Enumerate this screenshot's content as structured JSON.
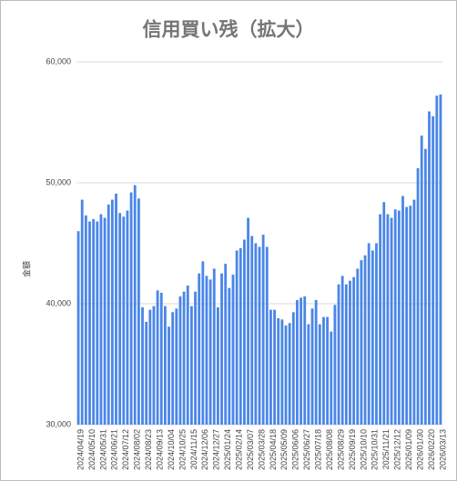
{
  "chart_data": {
    "type": "bar",
    "title": "信用買い残（拡大）",
    "y_label": "金額",
    "categories": [
      "2024/04/19",
      null,
      null,
      "2024/05/10",
      null,
      null,
      "2024/05/31",
      null,
      null,
      "2024/06/21",
      null,
      null,
      "2024/07/12",
      null,
      null,
      "2024/08/02",
      null,
      null,
      "2024/08/23",
      null,
      null,
      "2024/09/13",
      null,
      null,
      "2024/10/04",
      null,
      null,
      "2024/10/25",
      null,
      null,
      "2024/11/15",
      null,
      null,
      "2024/12/06",
      null,
      null,
      "2024/12/27",
      null,
      null,
      "2025/01/24",
      null,
      null,
      "2025/02/14",
      null,
      null,
      "2025/03/07",
      null,
      null,
      "2025/03/28",
      null,
      null,
      "2025/04/18",
      null,
      null,
      "2025/05/09",
      null,
      null,
      "2025/06/06",
      null,
      null,
      "2025/06/27",
      null,
      null,
      "2025/07/18",
      null,
      null,
      "2025/08/08",
      null,
      null,
      "2025/08/29",
      null,
      null,
      "2025/09/19",
      null,
      null,
      "2025/10/10",
      null,
      null,
      "2025/10/31",
      null,
      null,
      "2025/11/21",
      null,
      null,
      "2025/12/12",
      null,
      null,
      "2026/01/09",
      null,
      null,
      "2026/01/30",
      null,
      null,
      "2026/02/20",
      null,
      null,
      "2026/03/13"
    ],
    "values": [
      46000,
      48600,
      47300,
      46800,
      47000,
      46800,
      47400,
      47100,
      48200,
      48600,
      49100,
      47500,
      47200,
      47700,
      49200,
      49800,
      48700,
      39700,
      38500,
      39500,
      39800,
      41100,
      40900,
      39800,
      38100,
      39300,
      39600,
      40600,
      41000,
      41500,
      39800,
      41000,
      42500,
      43500,
      42300,
      42000,
      42900,
      39700,
      42500,
      43300,
      41300,
      42400,
      44400,
      44600,
      45300,
      47100,
      45600,
      45000,
      44700,
      45700,
      44700,
      39500,
      39500,
      38800,
      38700,
      38200,
      38400,
      39300,
      40300,
      40500,
      40600,
      38300,
      39600,
      40300,
      38300,
      38900,
      38900,
      37700,
      39900,
      41600,
      42300,
      41600,
      41900,
      42200,
      42900,
      43600,
      44000,
      45000,
      44400,
      45000,
      47400,
      48400,
      47400,
      47100,
      47800,
      47700,
      48900,
      48000,
      48100,
      48600,
      51200,
      53900,
      52800,
      55900,
      55500,
      57200,
      57300
    ],
    "color": "#4a86e8",
    "ylim": [
      30000,
      60000
    ],
    "yticks": [
      {
        "value": 30000,
        "label": "30,000"
      },
      {
        "value": 40000,
        "label": "40,000"
      },
      {
        "value": 50000,
        "label": "50,000"
      },
      {
        "value": 60000,
        "label": "60,000"
      }
    ],
    "grid": true
  }
}
